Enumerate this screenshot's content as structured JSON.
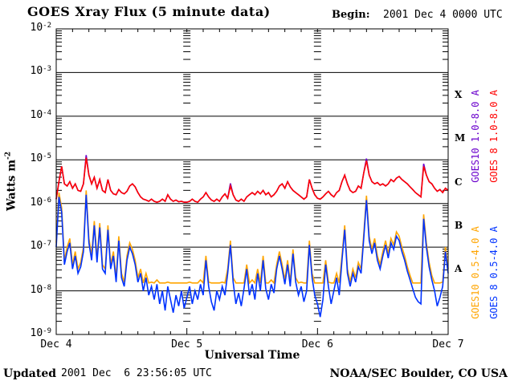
{
  "header": {
    "title": "GOES Xray Flux (5 minute data)",
    "begin_label": "Begin:",
    "begin_value": "2001 Dec 4 0000 UTC"
  },
  "footer": {
    "updated_label": "Updated",
    "updated_value": "2001 Dec  6 23:56:05 UTC",
    "credit": "NOAA/SEC Boulder, CO USA"
  },
  "chart_data": {
    "type": "line",
    "title": "GOES Xray Flux (5 minute data)",
    "xlabel": "Universal Time",
    "ylabel_base": "Watts m",
    "ylabel_exp": "-2",
    "x_unit": "hours since 2001 Dec 4 0000 UTC",
    "xlim": [
      0,
      72
    ],
    "x_minor_tick_hours": 3,
    "x_day_ticks": [
      "Dec 4",
      "Dec 5",
      "Dec 6",
      "Dec 7"
    ],
    "y_scale": "log",
    "y_tick_base": "10",
    "y_tick_exponents": [
      -2,
      -3,
      -4,
      -5,
      -6,
      -7,
      -8,
      -9
    ],
    "ylim_log10": [
      -9,
      -2
    ],
    "grid": {
      "horizontal_decade_lines": true,
      "day_tick_columns_hours": [
        24,
        48
      ]
    },
    "flare_classes": [
      {
        "label": "X",
        "log_center": -3.5
      },
      {
        "label": "M",
        "log_center": -4.5
      },
      {
        "label": "C",
        "log_center": -5.5
      },
      {
        "label": "B",
        "log_center": -6.5
      },
      {
        "label": "A",
        "log_center": -7.5
      }
    ],
    "legend_position": "right-vertical",
    "axis_color": "#000000",
    "series": [
      {
        "name": "GOES10 1.0-8.0 A",
        "color": "#6a00cc",
        "step_h": 0.5,
        "log10_watts": [
          -5.9,
          -5.5,
          -5.15,
          -5.55,
          -5.6,
          -5.5,
          -5.65,
          -5.55,
          -5.7,
          -5.72,
          -5.55,
          -4.89,
          -5.35,
          -5.55,
          -5.4,
          -5.65,
          -5.45,
          -5.7,
          -5.75,
          -5.45,
          -5.7,
          -5.78,
          -5.8,
          -5.68,
          -5.75,
          -5.78,
          -5.72,
          -5.6,
          -5.55,
          -5.62,
          -5.75,
          -5.85,
          -5.9,
          -5.92,
          -5.95,
          -5.9,
          -5.95,
          -5.97,
          -5.95,
          -5.9,
          -5.95,
          -5.8,
          -5.9,
          -5.95,
          -5.92,
          -5.96,
          -5.95,
          -5.97,
          -5.97,
          -5.95,
          -5.9,
          -5.95,
          -5.97,
          -5.9,
          -5.85,
          -5.75,
          -5.85,
          -5.92,
          -5.95,
          -5.9,
          -5.95,
          -5.85,
          -5.78,
          -5.88,
          -5.54,
          -5.8,
          -5.92,
          -5.95,
          -5.9,
          -5.95,
          -5.85,
          -5.8,
          -5.75,
          -5.8,
          -5.72,
          -5.78,
          -5.7,
          -5.8,
          -5.75,
          -5.85,
          -5.8,
          -5.72,
          -5.6,
          -5.55,
          -5.65,
          -5.5,
          -5.62,
          -5.7,
          -5.75,
          -5.8,
          -5.85,
          -5.9,
          -5.85,
          -5.45,
          -5.65,
          -5.8,
          -5.88,
          -5.9,
          -5.85,
          -5.78,
          -5.72,
          -5.8,
          -5.85,
          -5.75,
          -5.7,
          -5.5,
          -5.35,
          -5.55,
          -5.7,
          -5.75,
          -5.72,
          -5.6,
          -5.65,
          -5.3,
          -4.97,
          -5.35,
          -5.5,
          -5.55,
          -5.52,
          -5.58,
          -5.55,
          -5.6,
          -5.55,
          -5.45,
          -5.5,
          -5.42,
          -5.38,
          -5.45,
          -5.5,
          -5.55,
          -5.62,
          -5.68,
          -5.75,
          -5.8,
          -5.85,
          -5.09,
          -5.35,
          -5.5,
          -5.55,
          -5.65,
          -5.72,
          -5.68,
          -5.75,
          -5.65,
          -5.7
        ]
      },
      {
        "name": "GOES 8 1.0-8.0 A",
        "color": "#ff0000",
        "step_h": 0.5,
        "log10_watts": [
          -5.9,
          -5.5,
          -5.15,
          -5.55,
          -5.6,
          -5.5,
          -5.65,
          -5.55,
          -5.7,
          -5.72,
          -5.55,
          -4.95,
          -5.35,
          -5.55,
          -5.4,
          -5.65,
          -5.45,
          -5.7,
          -5.75,
          -5.45,
          -5.7,
          -5.78,
          -5.8,
          -5.68,
          -5.75,
          -5.78,
          -5.72,
          -5.6,
          -5.55,
          -5.62,
          -5.75,
          -5.85,
          -5.9,
          -5.92,
          -5.95,
          -5.9,
          -5.95,
          -5.97,
          -5.95,
          -5.9,
          -5.95,
          -5.8,
          -5.9,
          -5.95,
          -5.92,
          -5.96,
          -5.95,
          -5.97,
          -5.97,
          -5.95,
          -5.9,
          -5.95,
          -5.97,
          -5.9,
          -5.85,
          -5.75,
          -5.85,
          -5.92,
          -5.95,
          -5.9,
          -5.95,
          -5.85,
          -5.78,
          -5.88,
          -5.6,
          -5.8,
          -5.92,
          -5.95,
          -5.9,
          -5.95,
          -5.85,
          -5.8,
          -5.75,
          -5.8,
          -5.72,
          -5.78,
          -5.7,
          -5.8,
          -5.75,
          -5.85,
          -5.8,
          -5.72,
          -5.6,
          -5.55,
          -5.65,
          -5.5,
          -5.62,
          -5.7,
          -5.75,
          -5.8,
          -5.85,
          -5.9,
          -5.85,
          -5.45,
          -5.65,
          -5.8,
          -5.88,
          -5.9,
          -5.85,
          -5.78,
          -5.72,
          -5.8,
          -5.85,
          -5.75,
          -5.7,
          -5.5,
          -5.35,
          -5.55,
          -5.7,
          -5.75,
          -5.72,
          -5.6,
          -5.65,
          -5.3,
          -5.02,
          -5.35,
          -5.5,
          -5.55,
          -5.52,
          -5.58,
          -5.55,
          -5.6,
          -5.55,
          -5.45,
          -5.5,
          -5.42,
          -5.38,
          -5.45,
          -5.5,
          -5.55,
          -5.62,
          -5.68,
          -5.75,
          -5.8,
          -5.85,
          -5.15,
          -5.35,
          -5.5,
          -5.55,
          -5.65,
          -5.72,
          -5.68,
          -5.75,
          -5.65,
          -5.7
        ]
      },
      {
        "name": "GOES10 0.5-4.0 A",
        "color": "#ffa500",
        "step_h": 0.5,
        "log10_watts": [
          -6.9,
          -5.75,
          -6.1,
          -7.3,
          -7.0,
          -6.8,
          -7.4,
          -7.1,
          -7.5,
          -7.35,
          -7.0,
          -5.7,
          -6.8,
          -7.2,
          -6.4,
          -7.25,
          -6.45,
          -7.4,
          -7.5,
          -6.5,
          -7.4,
          -7.1,
          -7.7,
          -6.75,
          -7.6,
          -7.8,
          -7.2,
          -6.9,
          -7.05,
          -7.3,
          -7.7,
          -7.5,
          -7.82,
          -7.6,
          -7.82,
          -7.8,
          -7.82,
          -7.75,
          -7.82,
          -7.82,
          -7.82,
          -7.8,
          -7.82,
          -7.82,
          -7.82,
          -7.82,
          -7.82,
          -7.82,
          -7.82,
          -7.8,
          -7.82,
          -7.82,
          -7.82,
          -7.75,
          -7.82,
          -7.2,
          -7.8,
          -7.82,
          -7.82,
          -7.82,
          -7.82,
          -7.8,
          -7.82,
          -7.5,
          -6.85,
          -7.7,
          -7.82,
          -7.82,
          -7.82,
          -7.82,
          -7.4,
          -7.82,
          -7.75,
          -7.82,
          -7.5,
          -7.82,
          -7.2,
          -7.82,
          -7.82,
          -7.75,
          -7.82,
          -7.4,
          -7.1,
          -7.4,
          -7.75,
          -7.3,
          -7.8,
          -7.05,
          -7.7,
          -7.82,
          -7.8,
          -7.82,
          -7.82,
          -6.85,
          -7.6,
          -7.82,
          -7.82,
          -7.82,
          -7.82,
          -7.3,
          -7.8,
          -7.82,
          -7.82,
          -7.6,
          -7.82,
          -7.2,
          -6.5,
          -7.5,
          -7.8,
          -7.5,
          -7.7,
          -7.35,
          -7.5,
          -6.7,
          -5.82,
          -6.75,
          -7.05,
          -6.8,
          -7.2,
          -7.4,
          -7.1,
          -6.85,
          -7.15,
          -6.8,
          -6.95,
          -6.65,
          -6.75,
          -7.0,
          -7.2,
          -7.45,
          -7.65,
          -7.82,
          -7.82,
          -7.82,
          -7.82,
          -6.25,
          -6.9,
          -7.35,
          -7.65,
          -7.82,
          -7.82,
          -7.82,
          -7.8,
          -7.0,
          -7.5
        ]
      },
      {
        "name": "GOES 8 0.5-4.0 A",
        "color": "#0033ff",
        "step_h": 0.5,
        "log10_watts": [
          -7.0,
          -5.85,
          -6.2,
          -7.4,
          -7.1,
          -6.9,
          -7.5,
          -7.2,
          -7.6,
          -7.45,
          -7.1,
          -5.8,
          -6.9,
          -7.3,
          -6.5,
          -7.35,
          -6.55,
          -7.5,
          -7.6,
          -6.6,
          -7.5,
          -7.2,
          -7.8,
          -6.85,
          -7.7,
          -7.9,
          -7.3,
          -7.0,
          -7.15,
          -7.4,
          -7.8,
          -7.6,
          -8.0,
          -7.7,
          -8.1,
          -7.9,
          -8.2,
          -7.85,
          -8.3,
          -8.0,
          -8.45,
          -7.9,
          -8.2,
          -8.5,
          -8.1,
          -8.35,
          -8.0,
          -8.4,
          -8.15,
          -7.9,
          -8.3,
          -8.0,
          -8.2,
          -7.85,
          -8.1,
          -7.3,
          -7.9,
          -8.25,
          -8.45,
          -8.0,
          -8.2,
          -7.9,
          -8.1,
          -7.6,
          -6.95,
          -7.8,
          -8.3,
          -8.05,
          -8.35,
          -7.95,
          -7.5,
          -8.1,
          -7.85,
          -8.2,
          -7.6,
          -8.0,
          -7.3,
          -7.95,
          -8.2,
          -7.85,
          -8.05,
          -7.5,
          -7.2,
          -7.5,
          -7.85,
          -7.4,
          -7.9,
          -7.15,
          -7.8,
          -8.1,
          -7.9,
          -8.25,
          -8.0,
          -6.95,
          -7.7,
          -8.1,
          -8.3,
          -8.6,
          -8.2,
          -7.4,
          -7.9,
          -8.3,
          -8.0,
          -7.7,
          -8.1,
          -7.3,
          -6.6,
          -7.6,
          -7.9,
          -7.6,
          -7.8,
          -7.45,
          -7.6,
          -6.8,
          -5.92,
          -6.85,
          -7.15,
          -6.9,
          -7.3,
          -7.5,
          -7.2,
          -6.95,
          -7.25,
          -6.9,
          -7.05,
          -6.75,
          -6.85,
          -7.1,
          -7.3,
          -7.55,
          -7.75,
          -7.95,
          -8.15,
          -8.25,
          -8.3,
          -6.35,
          -7.0,
          -7.45,
          -7.75,
          -8.0,
          -8.35,
          -8.15,
          -7.9,
          -7.1,
          -7.6
        ]
      }
    ]
  }
}
